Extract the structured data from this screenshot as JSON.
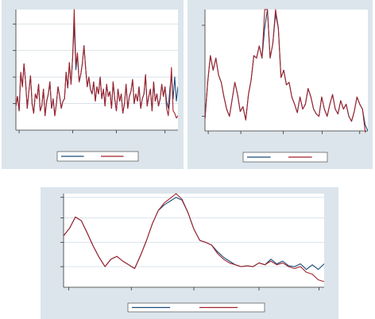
{
  "colors": {
    "background": "#dce5ec",
    "plot": "#ffffff",
    "gridline": "#d9e3ea",
    "series_a": "#1a4d7a",
    "series_b": "#a2222b"
  },
  "chart_data": [
    {
      "type": "line",
      "title": "",
      "xlabel": "",
      "ylabel": "",
      "xlim": [
        0,
        100
      ],
      "ylim": [
        0,
        100
      ],
      "grid": true,
      "legend": "bottom-center",
      "series": [
        {
          "name": "",
          "values": [
            20,
            28,
            16,
            48,
            36,
            55,
            40,
            18,
            32,
            45,
            22,
            14,
            30,
            26,
            38,
            16,
            20,
            34,
            12,
            24,
            30,
            40,
            18,
            26,
            12,
            22,
            36,
            28,
            18,
            24,
            26,
            48,
            35,
            56,
            38,
            60,
            88,
            50,
            62,
            40,
            46,
            55,
            70,
            52,
            36,
            44,
            34,
            30,
            40,
            24,
            36,
            30,
            44,
            26,
            34,
            20,
            38,
            28,
            32,
            18,
            40,
            26,
            16,
            34,
            24,
            30,
            14,
            22,
            38,
            18,
            28,
            32,
            42,
            22,
            30,
            24,
            36,
            18,
            26,
            30,
            46,
            20,
            28,
            34,
            16,
            40,
            24,
            30,
            20,
            26,
            38,
            28,
            36,
            24,
            18,
            34,
            45,
            26,
            44,
            24,
            36
          ]
        },
        {
          "name": "",
          "values": [
            20,
            28,
            16,
            48,
            36,
            55,
            40,
            18,
            32,
            45,
            22,
            14,
            30,
            26,
            38,
            16,
            20,
            34,
            12,
            24,
            30,
            40,
            18,
            26,
            12,
            22,
            36,
            28,
            18,
            24,
            26,
            48,
            35,
            56,
            38,
            60,
            100,
            54,
            64,
            40,
            46,
            55,
            70,
            52,
            36,
            44,
            34,
            30,
            40,
            24,
            36,
            30,
            44,
            26,
            34,
            20,
            38,
            28,
            32,
            18,
            40,
            26,
            16,
            34,
            24,
            30,
            14,
            22,
            38,
            18,
            28,
            32,
            42,
            22,
            30,
            24,
            36,
            18,
            26,
            30,
            46,
            20,
            28,
            34,
            16,
            40,
            24,
            30,
            20,
            26,
            38,
            28,
            36,
            18,
            12,
            26,
            52,
            16,
            14,
            10,
            12
          ]
        }
      ]
    },
    {
      "type": "line",
      "title": "",
      "xlabel": "",
      "ylabel": "",
      "xlim": [
        0,
        100
      ],
      "ylim": [
        0,
        100
      ],
      "grid": false,
      "legend": "bottom-center",
      "series": [
        {
          "name": "",
          "values": [
            10,
            40,
            62,
            50,
            60,
            46,
            40,
            28,
            18,
            12,
            26,
            40,
            30,
            16,
            20,
            9,
            30,
            42,
            62,
            60,
            70,
            60,
            85,
            100,
            60,
            72,
            96,
            85,
            44,
            50,
            38,
            40,
            28,
            22,
            15,
            28,
            18,
            22,
            35,
            28,
            18,
            14,
            12,
            28,
            18,
            12,
            22,
            30,
            18,
            14,
            25,
            18,
            22,
            12,
            8,
            16,
            28,
            22,
            18,
            5,
            0
          ]
        },
        {
          "name": "",
          "values": [
            10,
            40,
            62,
            50,
            60,
            46,
            40,
            28,
            18,
            12,
            26,
            40,
            30,
            16,
            20,
            9,
            30,
            42,
            62,
            60,
            70,
            60,
            100,
            100,
            60,
            72,
            100,
            85,
            44,
            50,
            38,
            40,
            28,
            22,
            15,
            28,
            18,
            22,
            35,
            28,
            18,
            14,
            12,
            28,
            18,
            12,
            22,
            30,
            18,
            14,
            25,
            18,
            22,
            12,
            8,
            16,
            28,
            22,
            18,
            0,
            -10
          ]
        }
      ]
    },
    {
      "type": "line",
      "title": "",
      "xlabel": "",
      "ylabel": "",
      "xlim": [
        0,
        100
      ],
      "ylim": [
        0,
        100
      ],
      "grid": true,
      "legend": "bottom-center",
      "series": [
        {
          "name": "",
          "values": [
            55,
            63,
            75,
            71,
            58,
            44,
            32,
            22,
            30,
            33,
            28,
            24,
            20,
            34,
            50,
            68,
            82,
            88,
            92,
            96,
            93,
            80,
            62,
            50,
            48,
            45,
            38,
            32,
            28,
            24,
            22,
            23,
            22,
            26,
            24,
            30,
            25,
            28,
            23,
            22,
            25,
            19,
            24,
            19,
            25
          ]
        },
        {
          "name": "",
          "values": [
            55,
            63,
            75,
            71,
            58,
            44,
            32,
            22,
            30,
            33,
            28,
            24,
            20,
            34,
            50,
            68,
            82,
            90,
            95,
            100,
            94,
            80,
            62,
            50,
            48,
            45,
            36,
            30,
            26,
            24,
            22,
            23,
            22,
            26,
            24,
            28,
            24,
            26,
            22,
            20,
            22,
            16,
            14,
            8,
            6
          ]
        }
      ]
    }
  ]
}
